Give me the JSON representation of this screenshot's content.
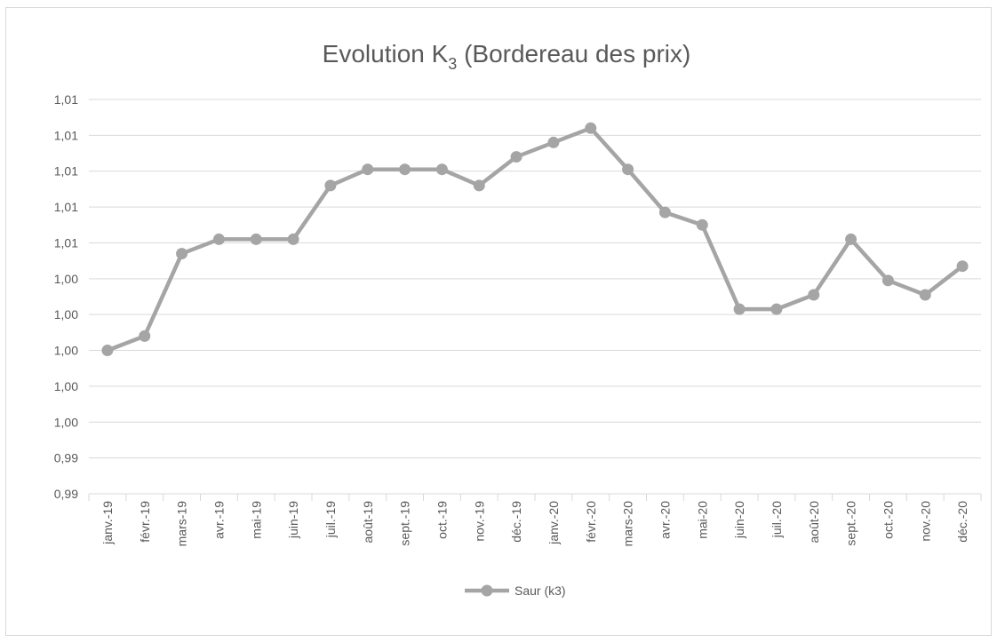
{
  "chart_data": {
    "type": "line",
    "title": [
      "Evolution K",
      "3",
      " (Bordereau des prix)"
    ],
    "categories": [
      "janv.-19",
      "févr.-19",
      "mars-19",
      "avr.-19",
      "mai-19",
      "juin-19",
      "juil.-19",
      "août-19",
      "sept.-19",
      "oct.-19",
      "nov.-19",
      "déc.-19",
      "janv.-20",
      "févr.-20",
      "mars-20",
      "avr.-20",
      "mai-20",
      "juin-20",
      "juil.-20",
      "août-20",
      "sept.-20",
      "oct.-20",
      "nov.-20",
      "déc.-20"
    ],
    "series": [
      {
        "name": "Saur (k3)",
        "color": "#a5a5a5",
        "values": [
          1.0,
          1.0008,
          1.0054,
          1.0062,
          1.0062,
          1.0062,
          1.0092,
          1.0101,
          1.0101,
          1.0101,
          1.0092,
          1.0108,
          1.0116,
          1.0124,
          1.0101,
          1.0077,
          1.007,
          1.0023,
          1.0023,
          1.0031,
          1.0062,
          1.0039,
          1.0031,
          1.0047
        ]
      }
    ],
    "ylim": [
      0.992,
      1.014
    ],
    "yticks": [
      {
        "value": 0.992,
        "label": "0,99"
      },
      {
        "value": 0.994,
        "label": "0,99"
      },
      {
        "value": 0.996,
        "label": "1,00"
      },
      {
        "value": 0.998,
        "label": "1,00"
      },
      {
        "value": 1.0,
        "label": "1,00"
      },
      {
        "value": 1.002,
        "label": "1,00"
      },
      {
        "value": 1.004,
        "label": "1,00"
      },
      {
        "value": 1.006,
        "label": "1,01"
      },
      {
        "value": 1.008,
        "label": "1,01"
      },
      {
        "value": 1.01,
        "label": "1,01"
      },
      {
        "value": 1.012,
        "label": "1,01"
      },
      {
        "value": 1.014,
        "label": "1,01"
      }
    ],
    "grid": true,
    "legend": "bottom"
  }
}
